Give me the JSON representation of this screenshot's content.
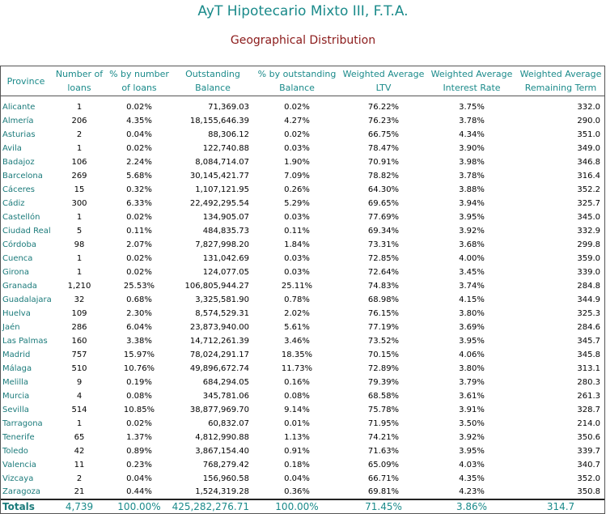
{
  "title": "AyT Hipotecario Mixto III, F.T.A.",
  "subtitle": "Geographical Distribution",
  "columns": [
    "Province",
    "Number of loans",
    "% by number of loans",
    "Outstanding Balance",
    "% by outstanding Balance",
    "Weighted Average LTV",
    "Weighted Average Interest Rate",
    "Weighted Average Remaining Term"
  ],
  "header_lines": [
    [
      "Province"
    ],
    [
      "Number of",
      "loans"
    ],
    [
      "% by number",
      "of loans"
    ],
    [
      "Outstanding",
      "Balance"
    ],
    [
      "% by outstanding",
      "Balance"
    ],
    [
      "Weighted Average",
      "LTV"
    ],
    [
      "Weighted Average",
      "Interest Rate"
    ],
    [
      "Weighted Average",
      "Remaining Term"
    ]
  ],
  "rows": [
    [
      "Alicante",
      "1",
      "0.02%",
      "71,369.03",
      "0.02%",
      "76.22%",
      "3.75%",
      "332.0"
    ],
    [
      "Almería",
      "206",
      "4.35%",
      "18,155,646.39",
      "4.27%",
      "76.23%",
      "3.78%",
      "290.0"
    ],
    [
      "Asturias",
      "2",
      "0.04%",
      "88,306.12",
      "0.02%",
      "66.75%",
      "4.34%",
      "351.0"
    ],
    [
      "Avila",
      "1",
      "0.02%",
      "122,740.88",
      "0.03%",
      "78.47%",
      "3.90%",
      "349.0"
    ],
    [
      "Badajoz",
      "106",
      "2.24%",
      "8,084,714.07",
      "1.90%",
      "70.91%",
      "3.98%",
      "346.8"
    ],
    [
      "Barcelona",
      "269",
      "5.68%",
      "30,145,421.77",
      "7.09%",
      "78.82%",
      "3.78%",
      "316.4"
    ],
    [
      "Cáceres",
      "15",
      "0.32%",
      "1,107,121.95",
      "0.26%",
      "64.30%",
      "3.88%",
      "352.2"
    ],
    [
      "Cádiz",
      "300",
      "6.33%",
      "22,492,295.54",
      "5.29%",
      "69.65%",
      "3.94%",
      "325.7"
    ],
    [
      "Castellón",
      "1",
      "0.02%",
      "134,905.07",
      "0.03%",
      "77.69%",
      "3.95%",
      "345.0"
    ],
    [
      "Ciudad Real",
      "5",
      "0.11%",
      "484,835.73",
      "0.11%",
      "69.34%",
      "3.92%",
      "332.9"
    ],
    [
      "Córdoba",
      "98",
      "2.07%",
      "7,827,998.20",
      "1.84%",
      "73.31%",
      "3.68%",
      "299.8"
    ],
    [
      "Cuenca",
      "1",
      "0.02%",
      "131,042.69",
      "0.03%",
      "72.85%",
      "4.00%",
      "359.0"
    ],
    [
      "Girona",
      "1",
      "0.02%",
      "124,077.05",
      "0.03%",
      "72.64%",
      "3.45%",
      "339.0"
    ],
    [
      "Granada",
      "1,210",
      "25.53%",
      "106,805,944.27",
      "25.11%",
      "74.83%",
      "3.74%",
      "284.8"
    ],
    [
      "Guadalajara",
      "32",
      "0.68%",
      "3,325,581.90",
      "0.78%",
      "68.98%",
      "4.15%",
      "344.9"
    ],
    [
      "Huelva",
      "109",
      "2.30%",
      "8,574,529.31",
      "2.02%",
      "76.15%",
      "3.80%",
      "325.3"
    ],
    [
      "Jaén",
      "286",
      "6.04%",
      "23,873,940.00",
      "5.61%",
      "77.19%",
      "3.69%",
      "284.6"
    ],
    [
      "Las Palmas",
      "160",
      "3.38%",
      "14,712,261.39",
      "3.46%",
      "73.52%",
      "3.95%",
      "345.7"
    ],
    [
      "Madrid",
      "757",
      "15.97%",
      "78,024,291.17",
      "18.35%",
      "70.15%",
      "4.06%",
      "345.8"
    ],
    [
      "Málaga",
      "510",
      "10.76%",
      "49,896,672.74",
      "11.73%",
      "72.89%",
      "3.80%",
      "313.1"
    ],
    [
      "Melilla",
      "9",
      "0.19%",
      "684,294.05",
      "0.16%",
      "79.39%",
      "3.79%",
      "280.3"
    ],
    [
      "Murcia",
      "4",
      "0.08%",
      "345,781.06",
      "0.08%",
      "68.58%",
      "3.61%",
      "261.3"
    ],
    [
      "Sevilla",
      "514",
      "10.85%",
      "38,877,969.70",
      "9.14%",
      "75.78%",
      "3.91%",
      "328.7"
    ],
    [
      "Tarragona",
      "1",
      "0.02%",
      "60,832.07",
      "0.01%",
      "71.95%",
      "3.50%",
      "214.0"
    ],
    [
      "Tenerife",
      "65",
      "1.37%",
      "4,812,990.88",
      "1.13%",
      "74.21%",
      "3.92%",
      "350.6"
    ],
    [
      "Toledo",
      "42",
      "0.89%",
      "3,867,154.40",
      "0.91%",
      "71.63%",
      "3.95%",
      "339.7"
    ],
    [
      "Valencia",
      "11",
      "0.23%",
      "768,279.42",
      "0.18%",
      "65.09%",
      "4.03%",
      "340.7"
    ],
    [
      "Vizcaya",
      "2",
      "0.04%",
      "156,960.58",
      "0.04%",
      "66.71%",
      "4.35%",
      "352.0"
    ],
    [
      "Zaragoza",
      "21",
      "0.44%",
      "1,524,319.28",
      "0.36%",
      "69.81%",
      "4.23%",
      "350.8"
    ]
  ],
  "totals": [
    "Totals",
    "4,739",
    "100.00%",
    "425,282,276.71",
    "100.00%",
    "71.45%",
    "3.86%",
    "314.7"
  ],
  "colors": {
    "header_text": "#1a8a8a",
    "province_text": "#1a7a7a",
    "subtitle_text": "#8b1a1a",
    "body_text": "#000000"
  }
}
